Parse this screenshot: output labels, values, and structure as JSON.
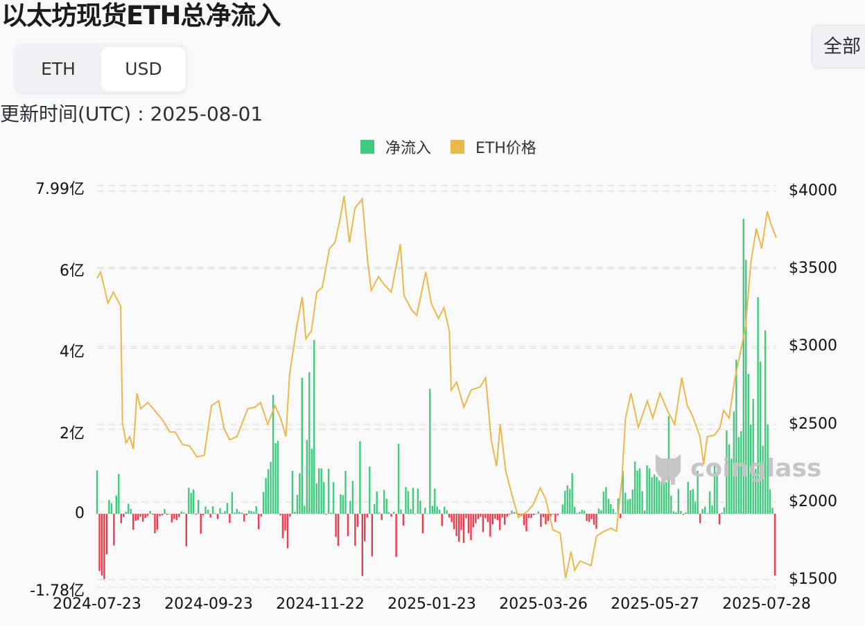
{
  "header": {
    "title": "以太坊现货ETH总净流入",
    "unit_toggle": {
      "options": [
        "ETH",
        "USD"
      ],
      "selected": "USD"
    },
    "updated_label": "更新时间(UTC) : 2025-08-01",
    "range_button": "全部"
  },
  "legend": [
    {
      "label": "净流入",
      "color": "#3fcb7e"
    },
    {
      "label": "ETH价格",
      "color": "#e9b949"
    }
  ],
  "watermark": "coinglass",
  "colors": {
    "positive": "#3fcb7e",
    "negative": "#f03b4d",
    "price": "#e9b949",
    "grid": "#e8e8e8"
  },
  "chart_data": {
    "type": "bar+line",
    "title": "以太坊现货ETH总净流入",
    "xlabel": "",
    "ylabel_left": "净流入 (USD, 亿)",
    "ylabel_right": "ETH价格 (USD)",
    "x_ticks": [
      "2024-07-23",
      "2024-09-23",
      "2024-11-22",
      "2025-01-23",
      "2025-03-26",
      "2025-05-27",
      "2025-07-28"
    ],
    "y_left_ticks": [
      "7.99亿",
      "6亿",
      "4亿",
      "2亿",
      "0",
      "-1.78亿"
    ],
    "y_left_range": [
      -1.78,
      7.99
    ],
    "y_right_ticks": [
      "$4000",
      "$3500",
      "$3000",
      "$2500",
      "$2000",
      "$1500"
    ],
    "y_right_range": [
      1500,
      4000
    ],
    "grid": true,
    "legend_position": "top",
    "series": [
      {
        "name": "净流入",
        "type": "bar",
        "unit": "亿 USD",
        "x_start": "2024-07-23",
        "x_end": "2025-08-01",
        "values": [
          1.07,
          -1.41,
          -1.52,
          -1.61,
          -1.0,
          0.34,
          0.26,
          -0.78,
          0.45,
          0.98,
          -0.23,
          -0.08,
          0.05,
          0.25,
          0.12,
          -0.39,
          -0.17,
          -0.15,
          -0.07,
          -0.19,
          -0.1,
          -0.05,
          0.07,
          -0.02,
          -0.48,
          -0.39,
          -0.06,
          -0.04,
          0.12,
          -0.02,
          0.0,
          -0.21,
          -0.12,
          -0.15,
          -0.08,
          0.06,
          0.03,
          -0.8,
          0.64,
          0.51,
          0.6,
          -0.02,
          0.34,
          -0.49,
          -0.04,
          0.18,
          0.1,
          -0.09,
          0.19,
          0.02,
          -0.13,
          0.14,
          0.02,
          0.07,
          0.27,
          -0.22,
          0.54,
          0.03,
          0.12,
          0.05,
          0.03,
          -0.19,
          -0.03,
          0.08,
          0.07,
          0.05,
          0.19,
          -0.38,
          -0.07,
          0.54,
          0.88,
          1.1,
          1.28,
          2.93,
          1.74,
          1.8,
          -0.04,
          -0.6,
          -0.41,
          -0.85,
          -0.07,
          1.06,
          0.05,
          0.47,
          1.0,
          3.35,
          0.2,
          1.82,
          3.49,
          1.6,
          4.28,
          0.75,
          1.12,
          1.12,
          0.78,
          -0.02,
          1.11,
          0.03,
          0.78,
          -0.57,
          -0.79,
          0.48,
          0.46,
          1.06,
          -0.55,
          0.32,
          0.81,
          -0.79,
          -0.32,
          1.79,
          -1.53,
          -0.68,
          -0.09,
          1.16,
          -1.05,
          0.24,
          0.55,
          0.03,
          -0.15,
          0.59,
          0.37,
          0.04,
          -0.07,
          0.05,
          -1.06,
          1.72,
          0.11,
          -0.29,
          0.66,
          0.56,
          0.12,
          0.64,
          -0.01,
          0.62,
          0.32,
          -0.48,
          0.15,
          0.0,
          3.08,
          0.2,
          0.62,
          0.18,
          0.1,
          -0.3,
          0.18,
          0.09,
          -0.09,
          -0.2,
          -0.38,
          -0.55,
          -0.69,
          -0.4,
          -0.72,
          -0.11,
          -0.48,
          -0.65,
          -0.33,
          -0.23,
          -0.13,
          -0.07,
          -0.45,
          -0.11,
          -0.2,
          -0.56,
          -0.26,
          -0.12,
          -0.15,
          -0.4,
          -0.09,
          -0.27,
          -0.07,
          -0.02,
          0.08,
          0.05,
          0.05,
          -0.03,
          -0.05,
          -0.28,
          -0.43,
          -0.1,
          -0.1,
          -0.03,
          0.0,
          0.06,
          -0.32,
          -0.08,
          -0.26,
          -0.18,
          -0.06,
          -0.01,
          -0.2,
          -0.04,
          0.01,
          0.23,
          0.57,
          0.7,
          0.61,
          1.0,
          0.17,
          0.02,
          0.05,
          0.1,
          0.08,
          -0.18,
          -0.2,
          -0.13,
          -0.27,
          -0.37,
          0.13,
          0.09,
          0.55,
          0.66,
          0.37,
          0.24,
          0.12,
          0.02,
          0.38,
          -0.11,
          1.05,
          0.52,
          0.35,
          0.37,
          0.6,
          1.29,
          1.07,
          1.12,
          0.56,
          0.08,
          1.2,
          1.12,
          0.9,
          0.97,
          0.91,
          0.82,
          0.79,
          0.82,
          0.78,
          2.41,
          0.45,
          0.06,
          0.04,
          0.61,
          0.07,
          -0.02,
          0.04,
          0.79,
          0.58,
          0.61,
          0.3,
          1.06,
          -0.23,
          0.12,
          0.18,
          0.02,
          0.55,
          0.21,
          1.18,
          0.94,
          -0.26,
          0.03,
          0.16,
          2.06,
          1.71,
          1.36,
          2.52,
          3.8,
          1.89,
          2.04,
          7.27,
          6.26,
          3.45,
          2.2,
          2.83,
          1.11,
          5.34,
          3.75,
          1.68,
          4.52,
          2.2,
          0.6,
          0.15,
          -1.52
        ]
      },
      {
        "name": "ETH价格",
        "type": "line",
        "unit": "USD",
        "points_approx": [
          [
            "2024-07-23",
            3440
          ],
          [
            "2024-07-25",
            3480
          ],
          [
            "2024-07-29",
            3280
          ],
          [
            "2024-08-01",
            3350
          ],
          [
            "2024-08-05",
            3260
          ],
          [
            "2024-08-06",
            2510
          ],
          [
            "2024-08-08",
            2380
          ],
          [
            "2024-08-10",
            2420
          ],
          [
            "2024-08-12",
            2340
          ],
          [
            "2024-08-14",
            2700
          ],
          [
            "2024-08-16",
            2600
          ],
          [
            "2024-08-20",
            2640
          ],
          [
            "2024-08-25",
            2570
          ],
          [
            "2024-08-28",
            2530
          ],
          [
            "2024-09-01",
            2450
          ],
          [
            "2024-09-04",
            2450
          ],
          [
            "2024-09-08",
            2370
          ],
          [
            "2024-09-12",
            2360
          ],
          [
            "2024-09-16",
            2290
          ],
          [
            "2024-09-20",
            2300
          ],
          [
            "2024-09-24",
            2620
          ],
          [
            "2024-09-28",
            2650
          ],
          [
            "2024-10-01",
            2470
          ],
          [
            "2024-10-04",
            2400
          ],
          [
            "2024-10-08",
            2420
          ],
          [
            "2024-10-14",
            2600
          ],
          [
            "2024-10-18",
            2610
          ],
          [
            "2024-10-21",
            2640
          ],
          [
            "2024-10-25",
            2500
          ],
          [
            "2024-10-29",
            2620
          ],
          [
            "2024-11-01",
            2540
          ],
          [
            "2024-11-04",
            2420
          ],
          [
            "2024-11-06",
            2820
          ],
          [
            "2024-11-10",
            3130
          ],
          [
            "2024-11-13",
            3320
          ],
          [
            "2024-11-15",
            3050
          ],
          [
            "2024-11-18",
            3100
          ],
          [
            "2024-11-21",
            3350
          ],
          [
            "2024-11-24",
            3380
          ],
          [
            "2024-11-28",
            3630
          ],
          [
            "2024-12-01",
            3670
          ],
          [
            "2024-12-04",
            3830
          ],
          [
            "2024-12-06",
            3970
          ],
          [
            "2024-12-09",
            3670
          ],
          [
            "2024-12-12",
            3890
          ],
          [
            "2024-12-16",
            3950
          ],
          [
            "2024-12-19",
            3550
          ],
          [
            "2024-12-21",
            3360
          ],
          [
            "2024-12-25",
            3450
          ],
          [
            "2024-12-28",
            3400
          ],
          [
            "2025-01-01",
            3350
          ],
          [
            "2025-01-06",
            3660
          ],
          [
            "2025-01-08",
            3330
          ],
          [
            "2025-01-12",
            3240
          ],
          [
            "2025-01-15",
            3200
          ],
          [
            "2025-01-20",
            3480
          ],
          [
            "2025-01-23",
            3280
          ],
          [
            "2025-01-27",
            3180
          ],
          [
            "2025-01-30",
            3250
          ],
          [
            "2025-02-02",
            3100
          ],
          [
            "2025-02-03",
            2720
          ],
          [
            "2025-02-06",
            2770
          ],
          [
            "2025-02-10",
            2610
          ],
          [
            "2025-02-14",
            2720
          ],
          [
            "2025-02-19",
            2740
          ],
          [
            "2025-02-22",
            2800
          ],
          [
            "2025-02-25",
            2400
          ],
          [
            "2025-02-28",
            2230
          ],
          [
            "2025-03-02",
            2500
          ],
          [
            "2025-03-05",
            2200
          ],
          [
            "2025-03-09",
            2020
          ],
          [
            "2025-03-12",
            1900
          ],
          [
            "2025-03-17",
            1940
          ],
          [
            "2025-03-20",
            1980
          ],
          [
            "2025-03-24",
            2090
          ],
          [
            "2025-03-27",
            2020
          ],
          [
            "2025-03-31",
            1820
          ],
          [
            "2025-04-04",
            1800
          ],
          [
            "2025-04-07",
            1510
          ],
          [
            "2025-04-10",
            1680
          ],
          [
            "2025-04-12",
            1560
          ],
          [
            "2025-04-15",
            1620
          ],
          [
            "2025-04-21",
            1590
          ],
          [
            "2025-04-24",
            1780
          ],
          [
            "2025-04-28",
            1810
          ],
          [
            "2025-05-02",
            1830
          ],
          [
            "2025-05-05",
            1810
          ],
          [
            "2025-05-08",
            2150
          ],
          [
            "2025-05-10",
            2540
          ],
          [
            "2025-05-13",
            2700
          ],
          [
            "2025-05-17",
            2480
          ],
          [
            "2025-05-22",
            2650
          ],
          [
            "2025-05-25",
            2540
          ],
          [
            "2025-05-29",
            2700
          ],
          [
            "2025-06-02",
            2590
          ],
          [
            "2025-06-06",
            2500
          ],
          [
            "2025-06-10",
            2800
          ],
          [
            "2025-06-13",
            2620
          ],
          [
            "2025-06-16",
            2550
          ],
          [
            "2025-06-20",
            2420
          ],
          [
            "2025-06-22",
            2240
          ],
          [
            "2025-06-24",
            2420
          ],
          [
            "2025-06-28",
            2430
          ],
          [
            "2025-07-01",
            2480
          ],
          [
            "2025-07-03",
            2590
          ],
          [
            "2025-07-06",
            2540
          ],
          [
            "2025-07-09",
            2780
          ],
          [
            "2025-07-12",
            2950
          ],
          [
            "2025-07-15",
            3120
          ],
          [
            "2025-07-18",
            3540
          ],
          [
            "2025-07-21",
            3760
          ],
          [
            "2025-07-24",
            3630
          ],
          [
            "2025-07-27",
            3870
          ],
          [
            "2025-07-29",
            3790
          ],
          [
            "2025-08-01",
            3700
          ]
        ]
      }
    ]
  }
}
